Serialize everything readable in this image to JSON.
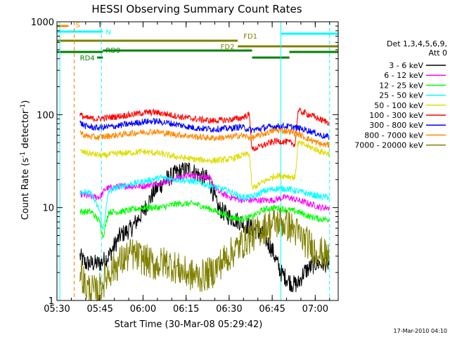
{
  "chart_data": {
    "type": "line",
    "title": "HESSI Observing Summary Count Rates",
    "xlabel": "Start Time (30-Mar-08 05:29:42)",
    "ylabel_main": "Count Rate (s",
    "ylabel_sup1": "-1",
    "ylabel_mid": " detector",
    "ylabel_sup2": "-1",
    "ylabel_end": ")",
    "ylog": true,
    "ylim": [
      1,
      1000
    ],
    "xlim": [
      "05:30",
      "07:08"
    ],
    "x_ticks": [
      "05:30",
      "05:45",
      "06:00",
      "06:15",
      "06:30",
      "06:45",
      "07:00"
    ],
    "y_ticks": [
      "1",
      "10",
      "100",
      "1000"
    ],
    "legend_header": [
      "Det 1,3,4,5,6,9,",
      "Att 0"
    ],
    "footer": "17-Mar-2010 04:10",
    "series": [
      {
        "name": "3 - 6 keV",
        "color": "#000000",
        "points": [
          [
            "05:38",
            3
          ],
          [
            "05:40",
            2.5
          ],
          [
            "05:45",
            2.5
          ],
          [
            "05:48",
            3
          ],
          [
            "05:52",
            5
          ],
          [
            "05:56",
            6
          ],
          [
            "06:00",
            9
          ],
          [
            "06:04",
            15
          ],
          [
            "06:08",
            20
          ],
          [
            "06:12",
            24
          ],
          [
            "06:16",
            26
          ],
          [
            "06:20",
            22
          ],
          [
            "06:23",
            20
          ],
          [
            "06:26",
            10
          ],
          [
            "06:30",
            8
          ],
          [
            "06:34",
            7
          ],
          [
            "06:38",
            6
          ],
          [
            "06:42",
            5
          ],
          [
            "06:45",
            3.5
          ],
          [
            "06:48",
            2
          ],
          [
            "06:52",
            1.5
          ],
          [
            "06:54",
            1.5
          ],
          [
            "06:56",
            2
          ],
          [
            "07:00",
            2.5
          ],
          [
            "07:04",
            2.5
          ],
          [
            "07:05",
            2.5
          ]
        ]
      },
      {
        "name": "6 - 12 keV",
        "color": "#ff00ff",
        "points": [
          [
            "05:38",
            14
          ],
          [
            "05:42",
            13
          ],
          [
            "05:45",
            13
          ],
          [
            "05:47",
            16
          ],
          [
            "05:52",
            17
          ],
          [
            "06:00",
            17
          ],
          [
            "06:04",
            18
          ],
          [
            "06:08",
            19
          ],
          [
            "06:12",
            21
          ],
          [
            "06:16",
            22
          ],
          [
            "06:20",
            22
          ],
          [
            "06:23",
            21
          ],
          [
            "06:26",
            15
          ],
          [
            "06:30",
            13
          ],
          [
            "06:35",
            12
          ],
          [
            "06:40",
            12
          ],
          [
            "06:45",
            12
          ],
          [
            "06:50",
            13
          ],
          [
            "06:54",
            12
          ],
          [
            "06:58",
            11
          ],
          [
            "07:02",
            10
          ],
          [
            "07:05",
            10
          ]
        ]
      },
      {
        "name": "12 - 25 keV",
        "color": "#00ff00",
        "points": [
          [
            "05:38",
            9
          ],
          [
            "05:42",
            9
          ],
          [
            "05:45",
            7
          ],
          [
            "05:46",
            4.8
          ],
          [
            "05:48",
            9
          ],
          [
            "05:52",
            9
          ],
          [
            "06:00",
            10
          ],
          [
            "06:06",
            10
          ],
          [
            "06:12",
            11
          ],
          [
            "06:18",
            11
          ],
          [
            "06:22",
            10
          ],
          [
            "06:26",
            9
          ],
          [
            "06:30",
            8
          ],
          [
            "06:34",
            7.5
          ],
          [
            "06:38",
            8
          ],
          [
            "06:42",
            9.5
          ],
          [
            "06:46",
            10
          ],
          [
            "06:50",
            9.5
          ],
          [
            "06:54",
            9
          ],
          [
            "06:58",
            8
          ],
          [
            "07:02",
            7.5
          ],
          [
            "07:05",
            7.5
          ]
        ]
      },
      {
        "name": "25 - 50 keV",
        "color": "#00ffff",
        "points": [
          [
            "05:38",
            15
          ],
          [
            "05:42",
            14
          ],
          [
            "05:45",
            9
          ],
          [
            "05:46",
            5.5
          ],
          [
            "05:48",
            15
          ],
          [
            "05:52",
            17
          ],
          [
            "06:00",
            19
          ],
          [
            "06:06",
            21
          ],
          [
            "06:12",
            20
          ],
          [
            "06:18",
            19
          ],
          [
            "06:24",
            17
          ],
          [
            "06:30",
            15
          ],
          [
            "06:34",
            13
          ],
          [
            "06:38",
            13
          ],
          [
            "06:42",
            15
          ],
          [
            "06:46",
            16
          ],
          [
            "06:50",
            16
          ],
          [
            "06:54",
            15
          ],
          [
            "06:58",
            14
          ],
          [
            "07:02",
            13
          ],
          [
            "07:05",
            13
          ]
        ]
      },
      {
        "name": "50 - 100 keV",
        "color": "#dddd00",
        "points": [
          [
            "05:38",
            40
          ],
          [
            "05:42",
            38
          ],
          [
            "05:46",
            36
          ],
          [
            "05:50",
            38
          ],
          [
            "05:56",
            39
          ],
          [
            "06:00",
            40
          ],
          [
            "06:06",
            38
          ],
          [
            "06:12",
            35
          ],
          [
            "06:18",
            33
          ],
          [
            "06:24",
            32
          ],
          [
            "06:30",
            33
          ],
          [
            "06:34",
            36
          ],
          [
            "06:37",
            38
          ],
          [
            "06:38",
            16
          ],
          [
            "06:42",
            19
          ],
          [
            "06:46",
            22
          ],
          [
            "06:50",
            22
          ],
          [
            "06:53",
            21
          ],
          [
            "06:54",
            50
          ],
          [
            "06:58",
            45
          ],
          [
            "07:02",
            40
          ],
          [
            "07:05",
            38
          ]
        ]
      },
      {
        "name": "100 - 300 keV",
        "color": "#ff0000",
        "points": [
          [
            "05:38",
            100
          ],
          [
            "05:40",
            92
          ],
          [
            "05:44",
            90
          ],
          [
            "05:50",
            95
          ],
          [
            "05:56",
            100
          ],
          [
            "06:00",
            105
          ],
          [
            "06:04",
            106
          ],
          [
            "06:08",
            102
          ],
          [
            "06:12",
            96
          ],
          [
            "06:18",
            90
          ],
          [
            "06:24",
            86
          ],
          [
            "06:30",
            88
          ],
          [
            "06:34",
            92
          ],
          [
            "06:37",
            100
          ],
          [
            "06:38",
            42
          ],
          [
            "06:42",
            47
          ],
          [
            "06:46",
            52
          ],
          [
            "06:50",
            51
          ],
          [
            "06:53",
            48
          ],
          [
            "06:54",
            110
          ],
          [
            "06:58",
            100
          ],
          [
            "07:02",
            88
          ],
          [
            "07:05",
            82
          ]
        ]
      },
      {
        "name": "300 - 800 keV",
        "color": "#0000ff",
        "points": [
          [
            "05:38",
            82
          ],
          [
            "05:40",
            75
          ],
          [
            "05:44",
            72
          ],
          [
            "05:50",
            75
          ],
          [
            "05:56",
            80
          ],
          [
            "06:00",
            84
          ],
          [
            "06:04",
            85
          ],
          [
            "06:08",
            82
          ],
          [
            "06:12",
            78
          ],
          [
            "06:18",
            72
          ],
          [
            "06:24",
            70
          ],
          [
            "06:30",
            71
          ],
          [
            "06:34",
            74
          ],
          [
            "06:38",
            68
          ],
          [
            "06:42",
            72
          ],
          [
            "06:46",
            75
          ],
          [
            "06:50",
            75
          ],
          [
            "06:54",
            72
          ],
          [
            "06:58",
            67
          ],
          [
            "07:02",
            60
          ],
          [
            "07:05",
            57
          ]
        ]
      },
      {
        "name": "800 - 7000 keV",
        "color": "#ff8800",
        "points": [
          [
            "05:38",
            65
          ],
          [
            "05:40",
            59
          ],
          [
            "05:44",
            57
          ],
          [
            "05:50",
            60
          ],
          [
            "05:56",
            63
          ],
          [
            "06:00",
            65
          ],
          [
            "06:04",
            66
          ],
          [
            "06:08",
            63
          ],
          [
            "06:12",
            61
          ],
          [
            "06:18",
            58
          ],
          [
            "06:24",
            56
          ],
          [
            "06:30",
            57
          ],
          [
            "06:34",
            60
          ],
          [
            "06:38",
            56
          ],
          [
            "06:42",
            62
          ],
          [
            "06:46",
            68
          ],
          [
            "06:50",
            67
          ],
          [
            "06:54",
            62
          ],
          [
            "06:58",
            54
          ],
          [
            "07:02",
            48
          ],
          [
            "07:05",
            47
          ]
        ]
      },
      {
        "name": "7000 - 20000 keV",
        "color": "#808000",
        "points": [
          [
            "05:38",
            2.2
          ],
          [
            "05:40",
            1.4
          ],
          [
            "05:44",
            1.2
          ],
          [
            "05:48",
            2
          ],
          [
            "05:52",
            2.6
          ],
          [
            "05:56",
            3.2
          ],
          [
            "06:00",
            2.8
          ],
          [
            "06:04",
            2.4
          ],
          [
            "06:08",
            2.6
          ],
          [
            "06:12",
            2.2
          ],
          [
            "06:16",
            1.9
          ],
          [
            "06:20",
            1.8
          ],
          [
            "06:24",
            2
          ],
          [
            "06:28",
            2.7
          ],
          [
            "06:32",
            3.5
          ],
          [
            "06:36",
            4.5
          ],
          [
            "06:40",
            5.5
          ],
          [
            "06:44",
            6.5
          ],
          [
            "06:48",
            7
          ],
          [
            "06:52",
            6
          ],
          [
            "06:56",
            4.5
          ],
          [
            "07:00",
            3.5
          ],
          [
            "07:04",
            3
          ],
          [
            "07:05",
            3
          ]
        ]
      }
    ],
    "vlines": [
      {
        "x": "05:31",
        "color": "#00ffff",
        "dash": false
      },
      {
        "x": "05:45:30",
        "color": "#00ffff",
        "dash": true
      },
      {
        "x": "06:48",
        "color": "#00ffff",
        "dash": false
      },
      {
        "x": "07:05",
        "color": "#00ffff",
        "dash": true
      },
      {
        "x": "05:36",
        "color": "#ff7700",
        "dash": true
      }
    ],
    "flag_bars": [
      {
        "label": "S",
        "color": "#ff8800",
        "x1": "05:30",
        "x2": "05:34",
        "y": 37,
        "label_x": "05:36:30",
        "label_dy": 2
      },
      {
        "label": "N",
        "color": "#00ffff",
        "x1": "05:30",
        "x2": "05:46",
        "y": 45,
        "label_x": "05:47",
        "label_dy": 4
      },
      {
        "label": "",
        "color": "#00ffff",
        "x1": "06:48",
        "x2": "07:08",
        "y": 48,
        "label_x": "",
        "label_dy": 0
      },
      {
        "label": "FD1",
        "color": "#808000",
        "x1": "05:30",
        "x2": "06:33",
        "y": 58,
        "label_x": "06:35",
        "label_dy": -3
      },
      {
        "label": "FD2",
        "color": "#808000",
        "x1": "06:33",
        "x2": "07:08",
        "y": 66,
        "label_x": "06:27",
        "label_dy": 4
      },
      {
        "label": "",
        "color": "#008000",
        "x1": "05:30",
        "x2": "05:46",
        "y": 74,
        "label_x": "",
        "label_dy": 0
      },
      {
        "label": "RD9",
        "color": "#008000",
        "x1": "05:46",
        "x2": "06:38",
        "y": 72,
        "label_x": "05:47",
        "label_dy": 3
      },
      {
        "label": "",
        "color": "#008000",
        "x1": "06:38",
        "x2": "06:51",
        "y": 82,
        "label_x": "",
        "label_dy": 0
      },
      {
        "label": "",
        "color": "#008000",
        "x1": "06:51",
        "x2": "07:08",
        "y": 74,
        "label_x": "",
        "label_dy": 0
      },
      {
        "label": "RD4",
        "color": "#008000",
        "x1": "05:44",
        "x2": "05:46",
        "y": 82,
        "label_x": "05:38",
        "label_dy": 4
      }
    ]
  }
}
